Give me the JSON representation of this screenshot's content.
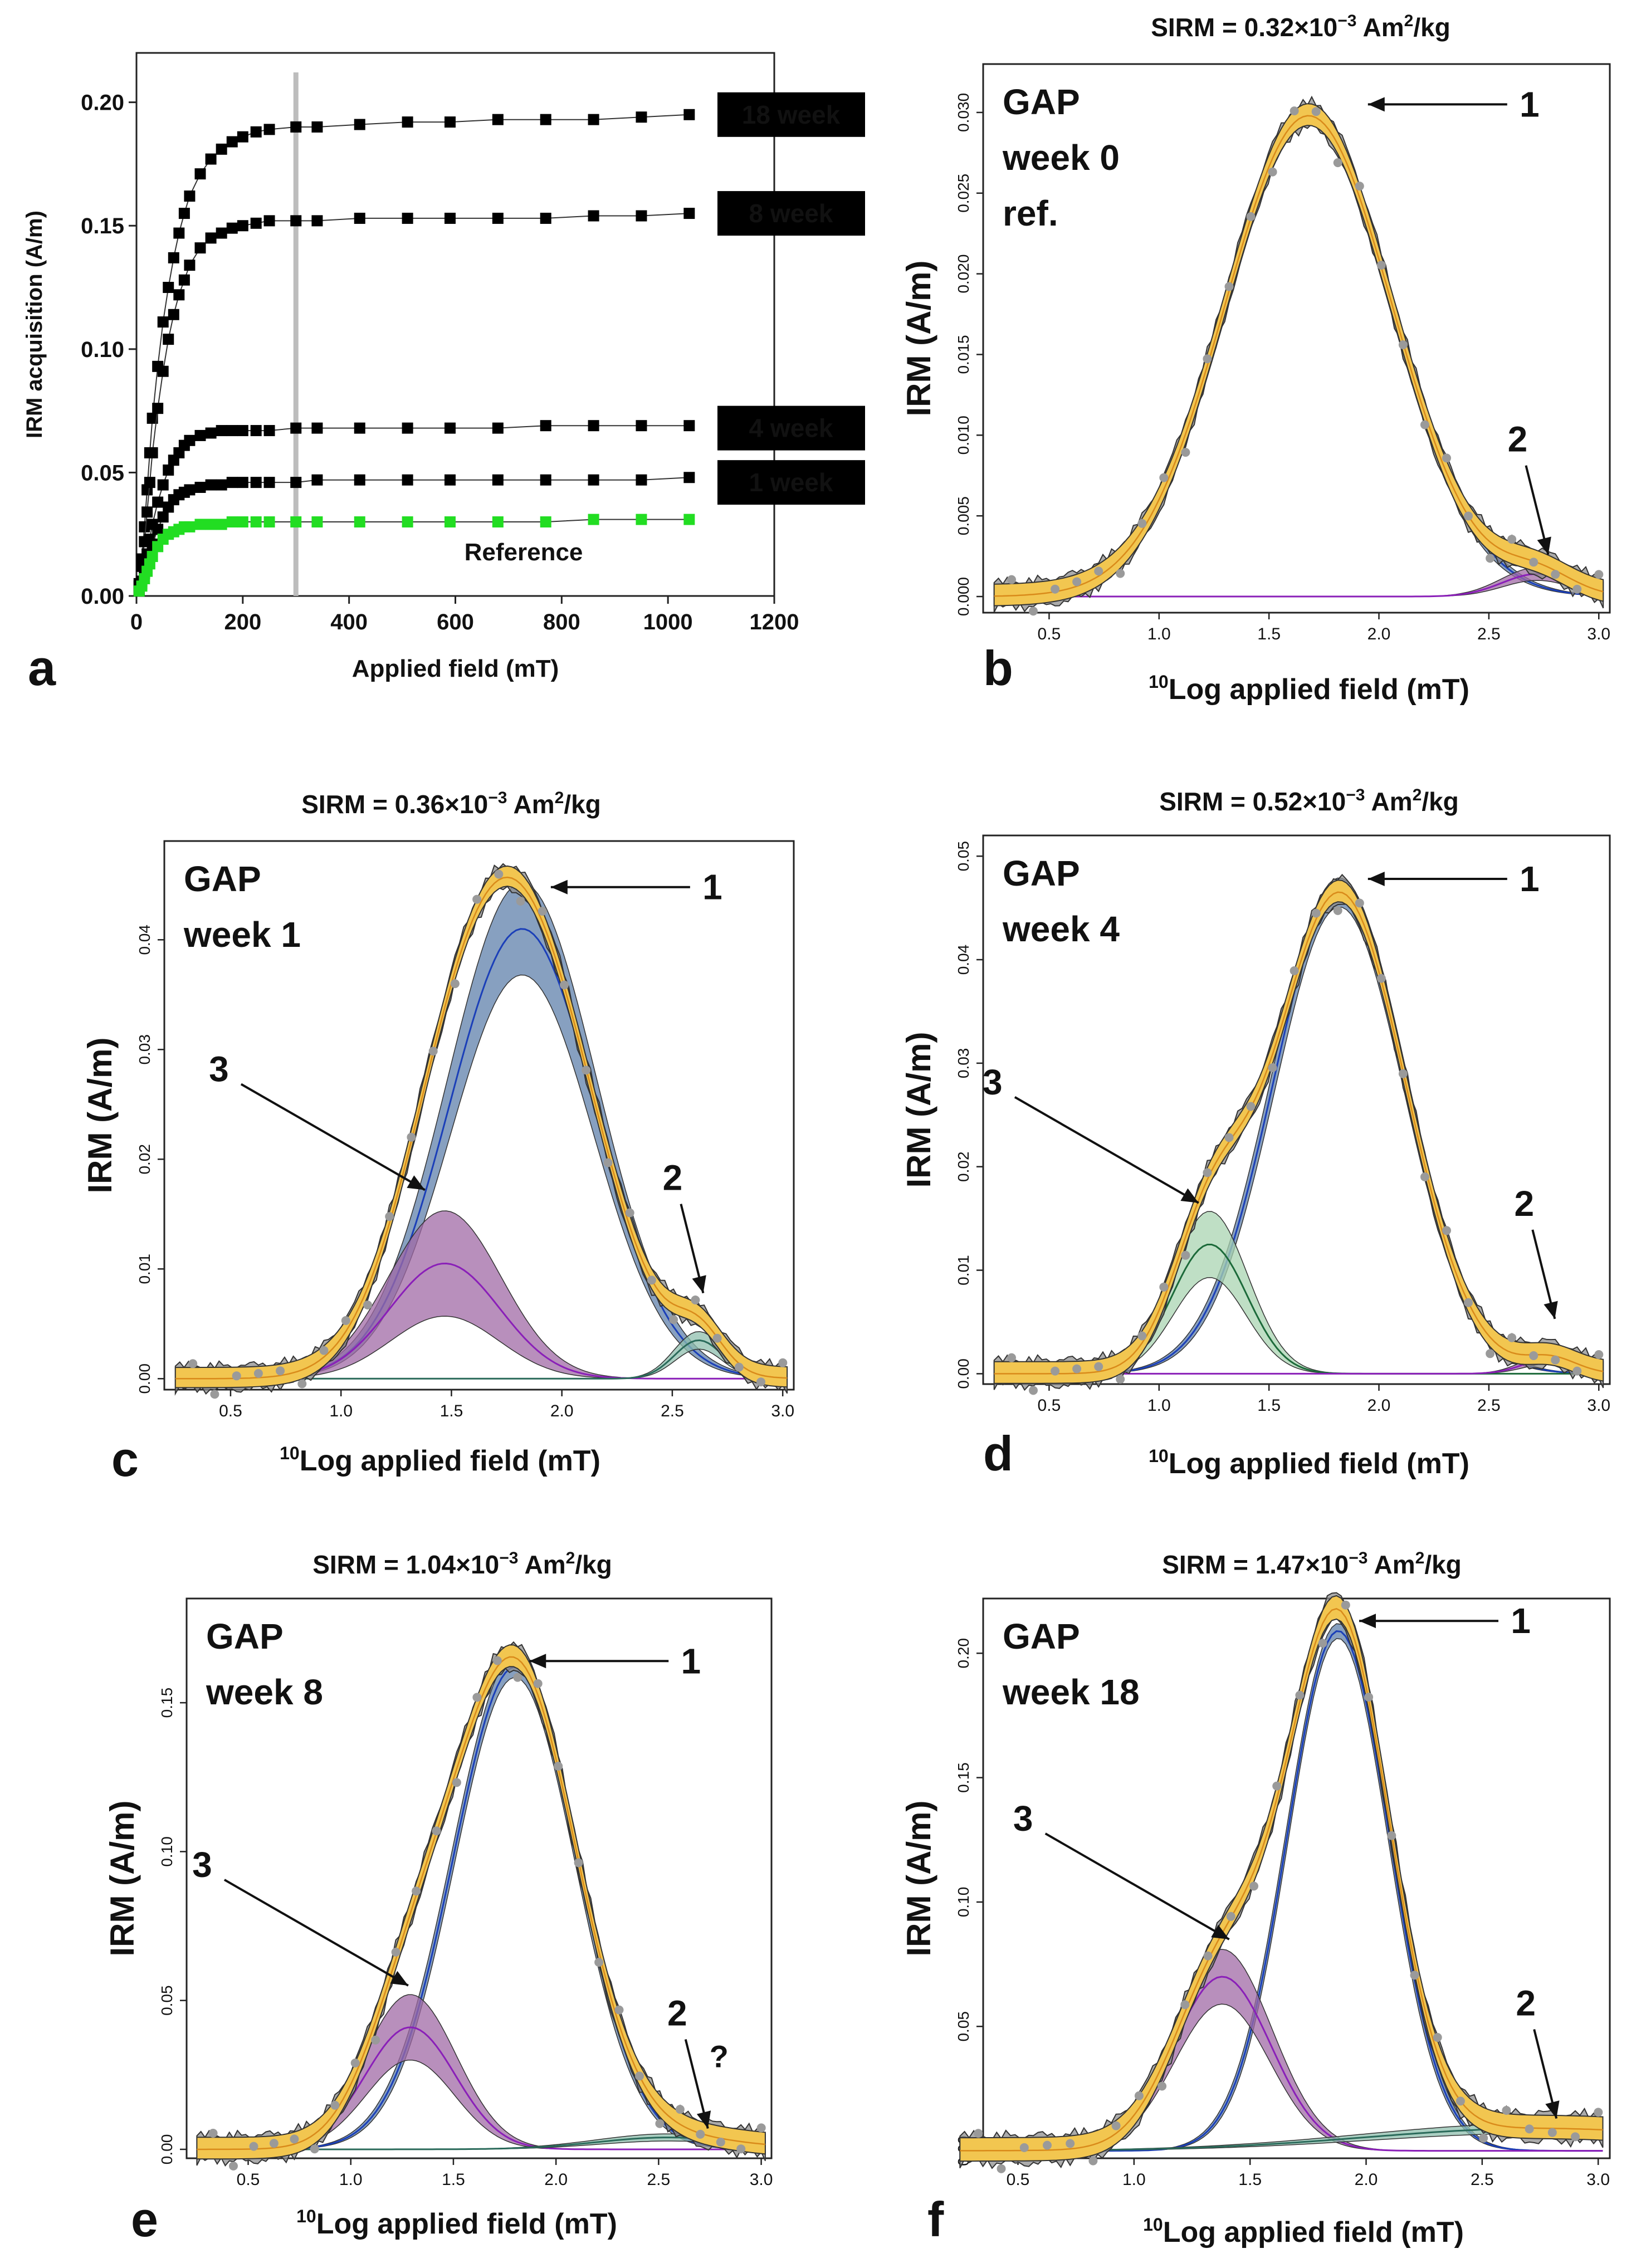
{
  "chart_data": [
    {
      "id": "a",
      "type": "line",
      "panel_letter": "a",
      "xlabel": "Applied field (mT)",
      "ylabel": "IRM acquisition (A/m)",
      "xlim": [
        0,
        1200
      ],
      "ylim": [
        0,
        0.22
      ],
      "xticks": [
        0,
        200,
        400,
        600,
        800,
        1000,
        1200
      ],
      "yticks": [
        0.0,
        0.05,
        0.1,
        0.15,
        0.2
      ],
      "vertical_line_x": 300,
      "x": [
        0,
        5,
        10,
        15,
        20,
        25,
        30,
        40,
        50,
        60,
        70,
        80,
        90,
        100,
        120,
        140,
        160,
        180,
        200,
        225,
        250,
        300,
        340,
        420,
        510,
        590,
        680,
        770,
        860,
        950,
        1040
      ],
      "series": [
        {
          "name": "18 week",
          "color": "#000000",
          "values": [
            0.0,
            0.005,
            0.015,
            0.028,
            0.043,
            0.058,
            0.072,
            0.093,
            0.111,
            0.125,
            0.137,
            0.147,
            0.155,
            0.162,
            0.171,
            0.177,
            0.181,
            0.184,
            0.186,
            0.188,
            0.189,
            0.19,
            0.19,
            0.191,
            0.192,
            0.192,
            0.193,
            0.193,
            0.193,
            0.194,
            0.195
          ]
        },
        {
          "name": "8 week",
          "color": "#000000",
          "values": [
            0.0,
            0.004,
            0.012,
            0.022,
            0.034,
            0.046,
            0.058,
            0.076,
            0.091,
            0.104,
            0.114,
            0.122,
            0.128,
            0.134,
            0.141,
            0.145,
            0.147,
            0.149,
            0.15,
            0.151,
            0.152,
            0.152,
            0.152,
            0.153,
            0.153,
            0.153,
            0.153,
            0.153,
            0.154,
            0.154,
            0.155
          ]
        },
        {
          "name": "4 week",
          "color": "#000000",
          "values": [
            0.0,
            0.002,
            0.006,
            0.011,
            0.017,
            0.023,
            0.029,
            0.038,
            0.045,
            0.051,
            0.055,
            0.058,
            0.061,
            0.063,
            0.065,
            0.066,
            0.067,
            0.067,
            0.067,
            0.067,
            0.067,
            0.068,
            0.068,
            0.068,
            0.068,
            0.068,
            0.068,
            0.069,
            0.069,
            0.069,
            0.069
          ]
        },
        {
          "name": "1 week",
          "color": "#000000",
          "values": [
            0.0,
            0.002,
            0.005,
            0.009,
            0.013,
            0.017,
            0.021,
            0.027,
            0.032,
            0.036,
            0.039,
            0.041,
            0.042,
            0.043,
            0.044,
            0.045,
            0.045,
            0.046,
            0.046,
            0.046,
            0.046,
            0.046,
            0.047,
            0.047,
            0.047,
            0.047,
            0.047,
            0.047,
            0.047,
            0.047,
            0.048
          ]
        },
        {
          "name": "Reference",
          "color": "#22dd22",
          "values": [
            0.0,
            0.002,
            0.004,
            0.007,
            0.01,
            0.013,
            0.016,
            0.02,
            0.023,
            0.025,
            0.026,
            0.027,
            0.028,
            0.028,
            0.029,
            0.029,
            0.029,
            0.03,
            0.03,
            0.03,
            0.03,
            0.03,
            0.03,
            0.03,
            0.03,
            0.03,
            0.03,
            0.03,
            0.031,
            0.031,
            0.031
          ]
        }
      ]
    },
    {
      "id": "b",
      "type": "area",
      "panel_letter": "b",
      "title_prefix": "SIRM = 0.32×10",
      "title_exp": "−3",
      "title_unit": " Am",
      "title_unit_exp": "2",
      "title_suffix": "/kg",
      "label_lines": [
        "GAP",
        "week 0",
        "ref."
      ],
      "xlabel_sup": "10",
      "xlabel": "Log applied field (mT)",
      "ylabel": "IRM (A/m)",
      "xlim": [
        0.2,
        3.05
      ],
      "ylim": [
        -0.001,
        0.033
      ],
      "xticks": [
        0.5,
        1.0,
        1.5,
        2.0,
        2.5,
        3.0
      ],
      "yticks": [
        0.0,
        0.005,
        0.01,
        0.015,
        0.02,
        0.025,
        0.03
      ],
      "components": [
        {
          "name": "1",
          "color": "#5b7fb0",
          "center": 1.68,
          "amplitude": 0.0298,
          "width": 0.38,
          "band": 0.0006
        },
        {
          "name": "2",
          "color": "#9b5fa8",
          "center": 2.72,
          "amplitude": 0.0014,
          "width": 0.16,
          "band": 0.0004
        }
      ],
      "arrows": [
        {
          "label": "1",
          "x": 1.95,
          "y": 0.0305
        },
        {
          "label": "2",
          "x": 2.77,
          "y": 0.0026
        }
      ]
    },
    {
      "id": "c",
      "type": "area",
      "panel_letter": "c",
      "title_prefix": "SIRM = 0.36×10",
      "title_exp": "−3",
      "title_unit": " Am",
      "title_unit_exp": "2",
      "title_suffix": "/kg",
      "label_lines": [
        "GAP",
        "week 1"
      ],
      "xlabel_sup": "10",
      "xlabel": "Log applied field (mT)",
      "ylabel": "IRM (A/m)",
      "xlim": [
        0.2,
        3.05
      ],
      "ylim": [
        -0.001,
        0.049
      ],
      "xticks": [
        0.5,
        1.0,
        1.5,
        2.0,
        2.5,
        3.0
      ],
      "yticks": [
        0.0,
        0.01,
        0.02,
        0.03,
        0.04
      ],
      "components": [
        {
          "name": "1",
          "color": "#5b7fb0",
          "center": 1.82,
          "amplitude": 0.041,
          "width": 0.33,
          "band": 0.0042
        },
        {
          "name": "3",
          "color": "#9b5fa8",
          "center": 1.47,
          "amplitude": 0.0105,
          "width": 0.25,
          "band": 0.0048
        },
        {
          "name": "2",
          "color": "#7fb0a0",
          "center": 2.62,
          "amplitude": 0.0035,
          "width": 0.11,
          "band": 0.0008
        }
      ],
      "arrows": [
        {
          "label": "1",
          "x": 1.95,
          "y": 0.0448
        },
        {
          "label": "3",
          "x": 1.38,
          "y": 0.0172
        },
        {
          "label": "2",
          "x": 2.64,
          "y": 0.0078
        }
      ]
    },
    {
      "id": "d",
      "type": "area",
      "panel_letter": "d",
      "title_prefix": "SIRM = 0.52×10",
      "title_exp": "−3",
      "title_unit": " Am",
      "title_unit_exp": "2",
      "title_suffix": "/kg",
      "label_lines": [
        "GAP",
        "week 4"
      ],
      "xlabel_sup": "10",
      "xlabel": "Log applied field (mT)",
      "ylabel": "IRM (A/m)",
      "xlim": [
        0.2,
        3.05
      ],
      "ylim": [
        -0.001,
        0.052
      ],
      "xticks": [
        0.5,
        1.0,
        1.5,
        2.0,
        2.5,
        3.0
      ],
      "yticks": [
        0.0,
        0.01,
        0.02,
        0.03,
        0.04,
        0.05
      ],
      "components": [
        {
          "name": "1",
          "color": "#5b7fb0",
          "center": 1.82,
          "amplitude": 0.0465,
          "width": 0.3,
          "band": 0.0014
        },
        {
          "name": "3",
          "color": "#9bcfa8",
          "center": 1.23,
          "amplitude": 0.0125,
          "width": 0.17,
          "band": 0.0032
        },
        {
          "name": "2",
          "color": "#9b5fa8",
          "center": 2.78,
          "amplitude": 0.0015,
          "width": 0.12,
          "band": 0.0005
        }
      ],
      "arrows": [
        {
          "label": "1",
          "x": 1.95,
          "y": 0.0478
        },
        {
          "label": "3",
          "x": 1.18,
          "y": 0.0165
        },
        {
          "label": "2",
          "x": 2.8,
          "y": 0.0053
        }
      ]
    },
    {
      "id": "e",
      "type": "area",
      "panel_letter": "e",
      "title_prefix": "SIRM = 1.04×10",
      "title_exp": "−3",
      "title_unit": " Am",
      "title_unit_exp": "2",
      "title_suffix": "/kg",
      "label_lines": [
        "GAP",
        "week 8"
      ],
      "xlabel_sup": "10",
      "xlabel": "Log applied field (mT)",
      "ylabel": "IRM (A/m)",
      "xlim": [
        0.2,
        3.05
      ],
      "ylim": [
        -0.003,
        0.185
      ],
      "xticks": [
        0.5,
        1.0,
        1.5,
        2.0,
        2.5,
        3.0
      ],
      "yticks": [
        0.0,
        0.05,
        0.1,
        0.15
      ],
      "components": [
        {
          "name": "1",
          "color": "#5b7fb0",
          "center": 1.8,
          "amplitude": 0.162,
          "width": 0.3,
          "band": 0.0035
        },
        {
          "name": "3",
          "color": "#9b5fa8",
          "center": 1.29,
          "amplitude": 0.041,
          "width": 0.22,
          "band": 0.011
        },
        {
          "name": "2",
          "color": "#7fb0a0",
          "center": 2.55,
          "amplitude": 0.004,
          "width": 0.35,
          "band": 0.0012
        }
      ],
      "arrows": [
        {
          "label": "1",
          "x": 1.87,
          "y": 0.164
        },
        {
          "label": "3",
          "x": 1.28,
          "y": 0.055
        },
        {
          "label": "2",
          "x": 2.74,
          "y": 0.007
        }
      ],
      "extra_label": "?"
    },
    {
      "id": "f",
      "type": "area",
      "panel_letter": "f",
      "title_prefix": "SIRM = 1.47×10",
      "title_exp": "−3",
      "title_unit": " Am",
      "title_unit_exp": "2",
      "title_suffix": "/kg",
      "label_lines": [
        "GAP",
        "week 18"
      ],
      "xlabel_sup": "10",
      "xlabel": "Log applied field (mT)",
      "ylabel": "IRM (A/m)",
      "xlim": [
        0.35,
        3.05
      ],
      "ylim": [
        -0.003,
        0.222
      ],
      "xticks": [
        0.5,
        1.0,
        1.5,
        2.0,
        2.5,
        3.0
      ],
      "yticks": [
        0.0,
        0.05,
        0.1,
        0.15,
        0.2
      ],
      "components": [
        {
          "name": "1",
          "color": "#5b7fb0",
          "center": 1.88,
          "amplitude": 0.209,
          "width": 0.22,
          "band": 0.003
        },
        {
          "name": "3",
          "color": "#9b5fa8",
          "center": 1.38,
          "amplitude": 0.07,
          "width": 0.21,
          "band": 0.011
        },
        {
          "name": "2",
          "color": "#7fb0a0",
          "center": 2.75,
          "amplitude": 0.009,
          "width": 0.75,
          "band": 0.002
        }
      ],
      "arrows": [
        {
          "label": "1",
          "x": 1.97,
          "y": 0.213
        },
        {
          "label": "3",
          "x": 1.41,
          "y": 0.085
        },
        {
          "label": "2",
          "x": 2.82,
          "y": 0.013
        }
      ]
    }
  ]
}
